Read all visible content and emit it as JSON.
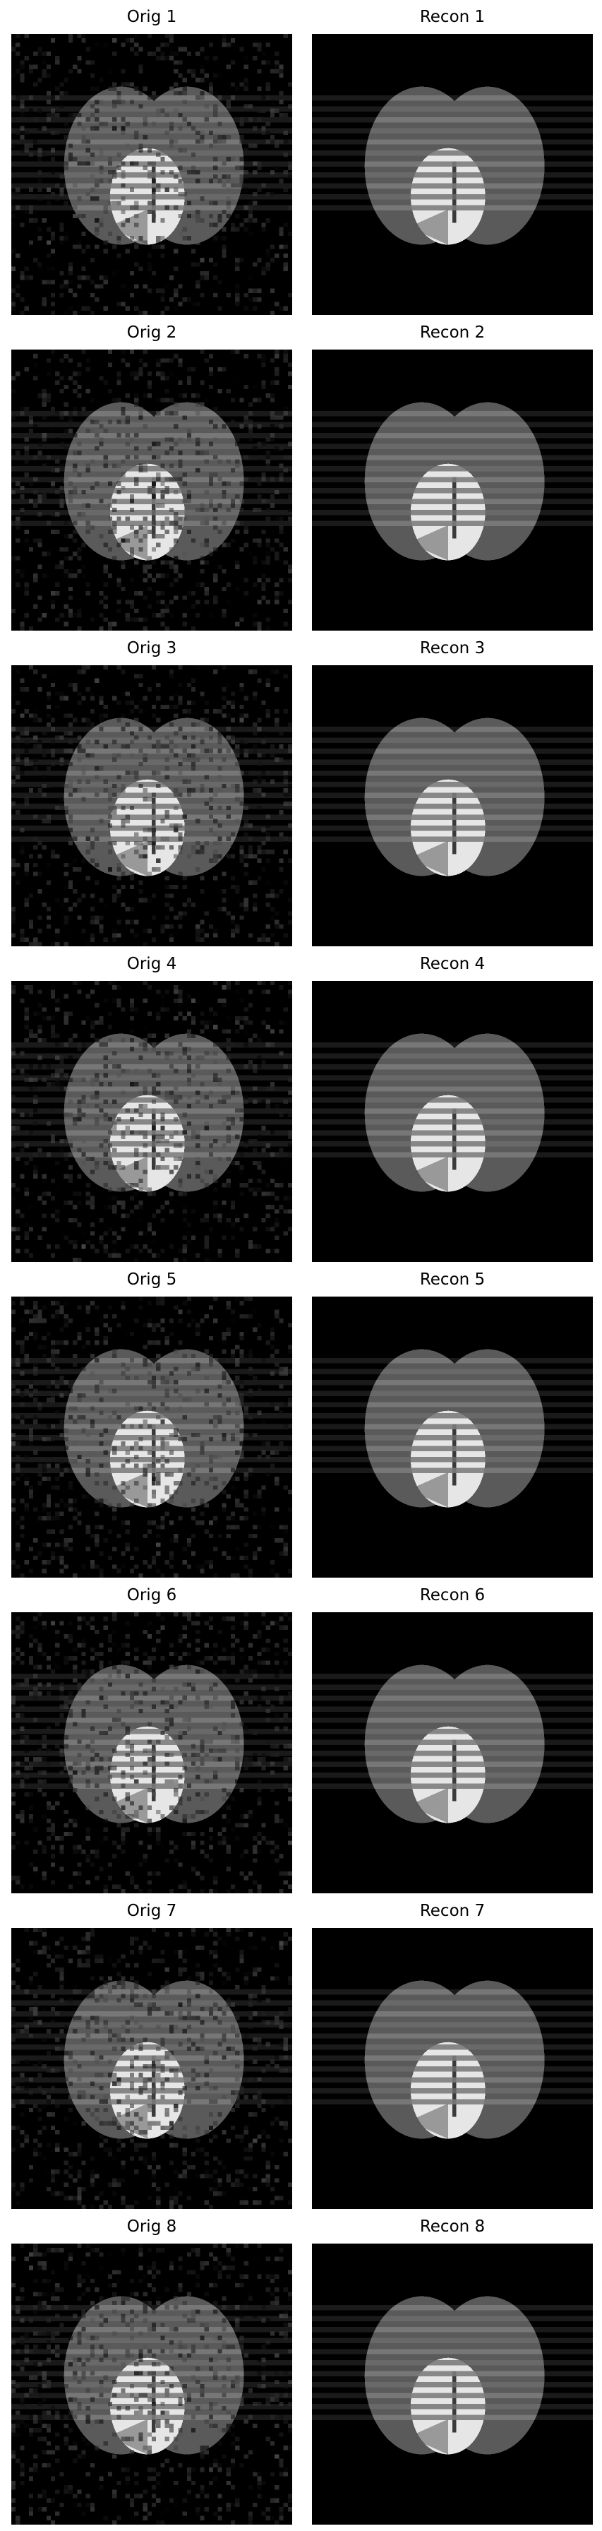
{
  "figure": {
    "panels": [
      {
        "title": "Orig 1",
        "kind": "orig"
      },
      {
        "title": "Recon 1",
        "kind": "recon"
      },
      {
        "title": "Orig 2",
        "kind": "orig"
      },
      {
        "title": "Recon 2",
        "kind": "recon"
      },
      {
        "title": "Orig 3",
        "kind": "orig"
      },
      {
        "title": "Recon 3",
        "kind": "recon"
      },
      {
        "title": "Orig 4",
        "kind": "orig"
      },
      {
        "title": "Recon 4",
        "kind": "recon"
      },
      {
        "title": "Orig 5",
        "kind": "orig"
      },
      {
        "title": "Recon 5",
        "kind": "recon"
      },
      {
        "title": "Orig 6",
        "kind": "orig"
      },
      {
        "title": "Recon 6",
        "kind": "recon"
      },
      {
        "title": "Orig 7",
        "kind": "orig"
      },
      {
        "title": "Recon 7",
        "kind": "recon"
      },
      {
        "title": "Orig 8",
        "kind": "orig"
      },
      {
        "title": "Recon 8",
        "kind": "recon"
      }
    ],
    "colors": {
      "background": "#000000",
      "ellipse_gray": "#5a5a5a",
      "overlap_gray": "#7a7a7a",
      "bright_region": "#e6e6e6",
      "stripe_light": "#8a8a8a",
      "title_text": "#000000"
    }
  }
}
